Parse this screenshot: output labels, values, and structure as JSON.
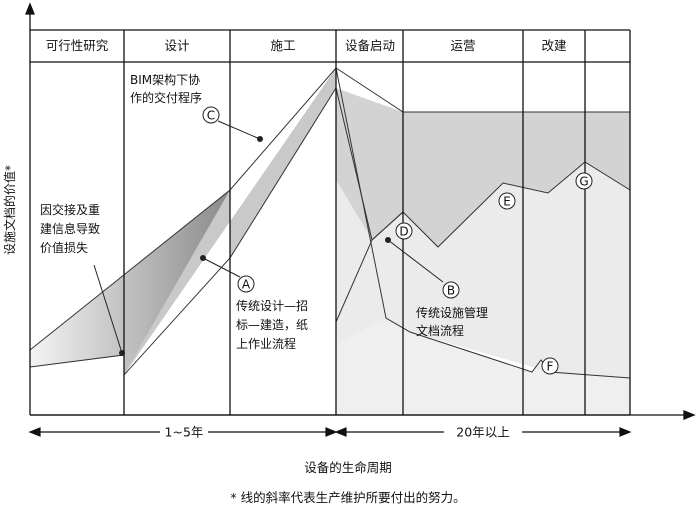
{
  "diagram": {
    "phases": [
      "可行性研究",
      "设计",
      "施工",
      "设备启动",
      "运营",
      "改建"
    ],
    "y_axis_label": "设施文档的价值*",
    "x_axis_label": "设备的生命周期",
    "footnote": "* 线的斜率代表生产维护所要付出的努力。",
    "durations": {
      "short": "1~5年",
      "long": "20年以上"
    },
    "annotations": {
      "bim": [
        "BIM架构下协",
        "作的交付程序"
      ],
      "loss": [
        "因交接及重",
        "建信息导致",
        "价值损失"
      ],
      "traditional_design": [
        "传统设计—招",
        "标—建造，纸",
        "上作业流程"
      ],
      "traditional_fm": [
        "传统设施管理",
        "文档流程"
      ]
    },
    "markers": {
      "A": "A",
      "B": "B",
      "C": "C",
      "D": "D",
      "E": "E",
      "F": "F",
      "G": "G"
    }
  }
}
